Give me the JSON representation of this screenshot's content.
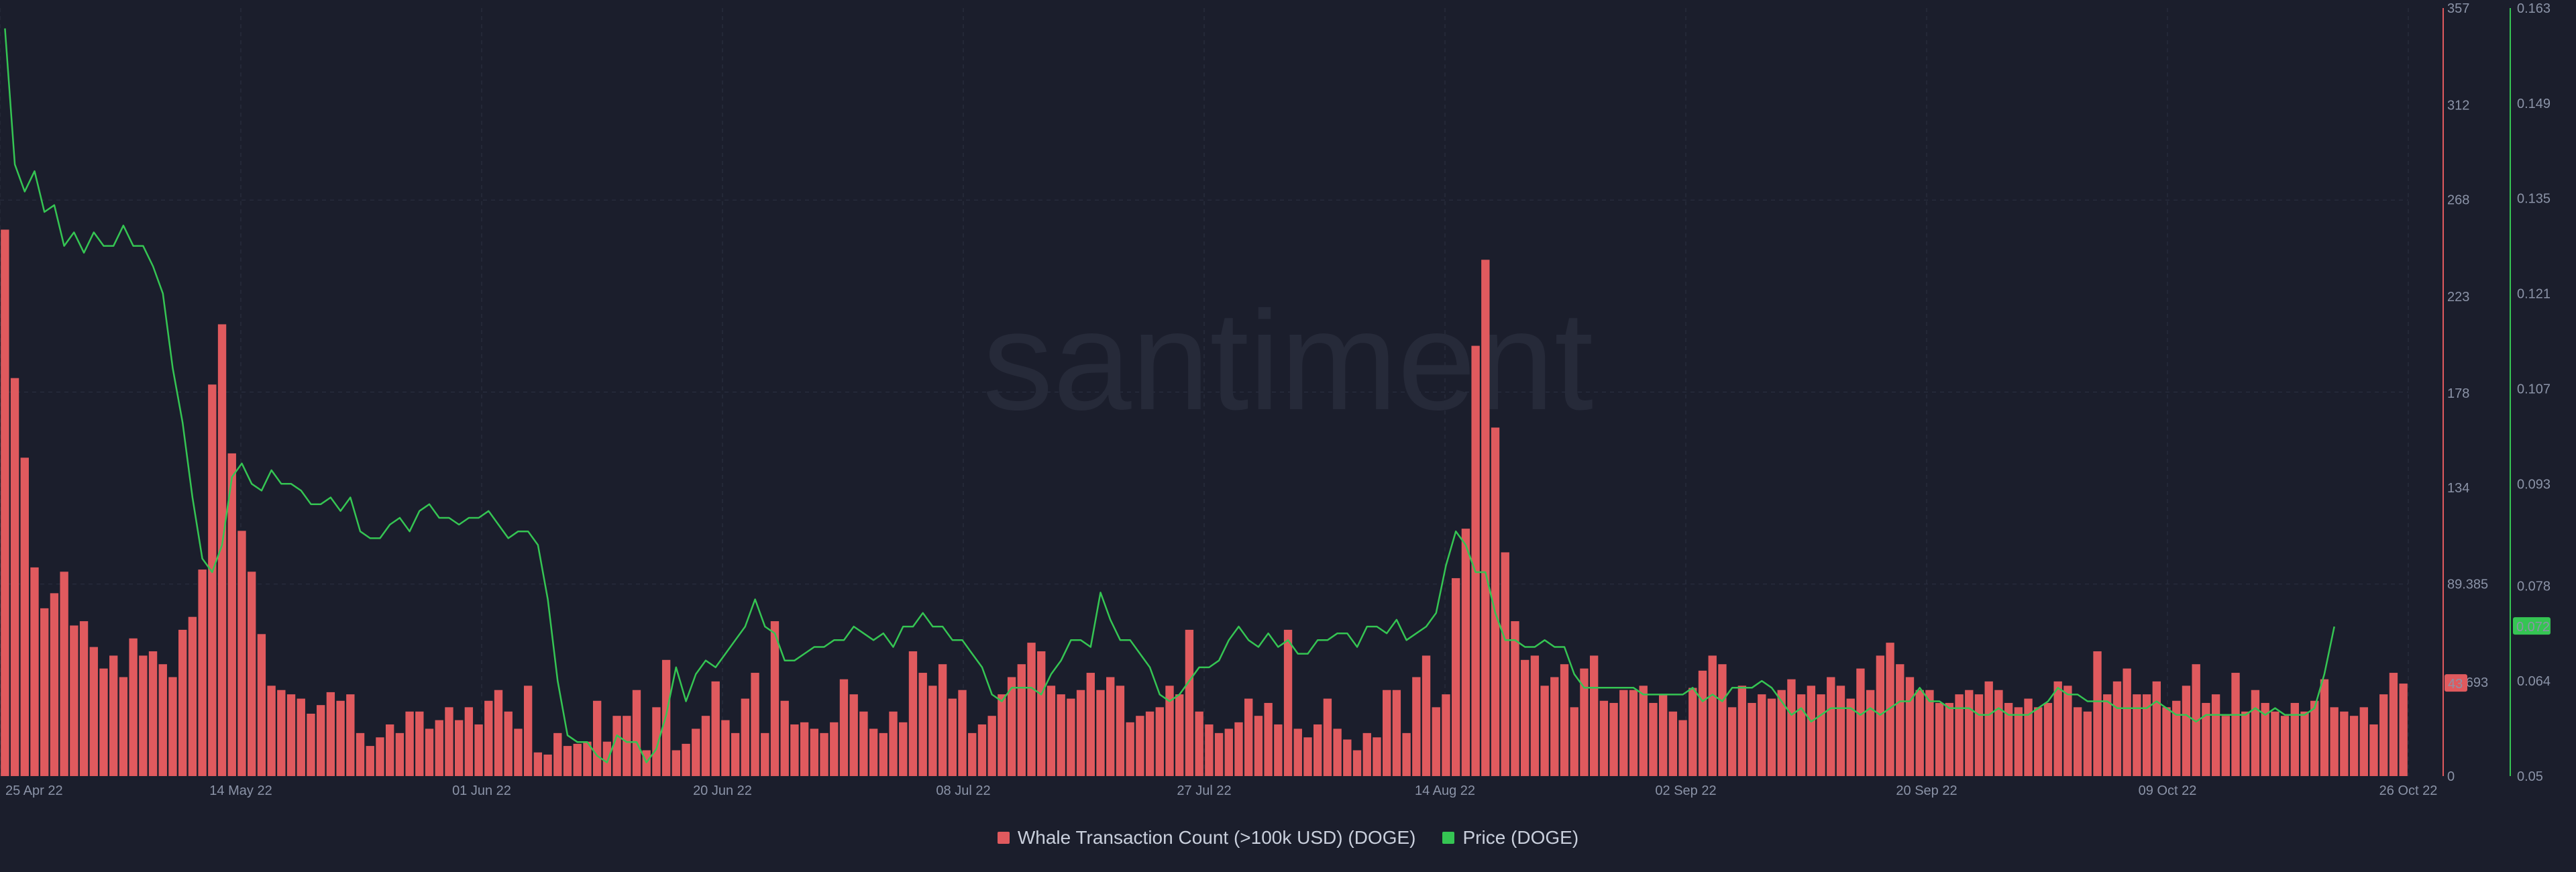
{
  "watermark": "santiment",
  "colors": {
    "background": "#1b1e2c",
    "whale": "#e05a5e",
    "price": "#35c553",
    "grid": "#2c3142",
    "axis_text": "#8b93a7"
  },
  "legend": {
    "whale_label": "Whale Transaction Count (>100k USD) (DOGE)",
    "price_label": "Price (DOGE)"
  },
  "current": {
    "whale_value": "43",
    "price_value": "0.072",
    "hidden_tick": "43.693"
  },
  "chart_data": {
    "type": "bar+line",
    "start_date": "2022-04-25",
    "end_date": "2022-10-26",
    "x_ticks": [
      "25 Apr 22",
      "14 May 22",
      "01 Jun 22",
      "20 Jun 22",
      "08 Jul 22",
      "27 Jul 22",
      "14 Aug 22",
      "02 Sep 22",
      "20 Sep 22",
      "09 Oct 22",
      "26 Oct 22"
    ],
    "left_axis": {
      "series": "Whale Transaction Count (>100k USD) (DOGE)",
      "ylim": [
        0,
        357
      ],
      "ticks": [
        "357",
        "312",
        "268",
        "223",
        "178",
        "134",
        "89.385",
        "0"
      ]
    },
    "right_axis": {
      "series": "Price (DOGE)",
      "ylim": [
        0.05,
        0.163
      ],
      "ticks": [
        "0.163",
        "0.149",
        "0.135",
        "0.121",
        "0.107",
        "0.093",
        "0.078",
        "0.064",
        "0.05"
      ]
    },
    "series": [
      {
        "name": "Whale Transaction Count (>100k USD) (DOGE)",
        "type": "bar",
        "axis": "left",
        "values": [
          254,
          185,
          148,
          97,
          78,
          85,
          95,
          70,
          72,
          60,
          50,
          56,
          46,
          64,
          56,
          58,
          52,
          46,
          68,
          74,
          96,
          182,
          210,
          150,
          114,
          95,
          66,
          42,
          40,
          38,
          36,
          29,
          33,
          39,
          35,
          38,
          20,
          14,
          18,
          24,
          20,
          30,
          30,
          22,
          26,
          32,
          26,
          32,
          24,
          35,
          40,
          30,
          22,
          42,
          11,
          10,
          20,
          14,
          15,
          16,
          35,
          16,
          28,
          28,
          40,
          12,
          32,
          54,
          12,
          15,
          22,
          28,
          44,
          26,
          20,
          36,
          48,
          20,
          72,
          35,
          24,
          25,
          22,
          20,
          25,
          45,
          38,
          30,
          22,
          20,
          30,
          25,
          58,
          48,
          42,
          52,
          36,
          40,
          20,
          24,
          28,
          38,
          46,
          52,
          62,
          58,
          42,
          38,
          36,
          40,
          48,
          40,
          46,
          42,
          25,
          28,
          30,
          32,
          42,
          38,
          68,
          30,
          24,
          20,
          22,
          25,
          36,
          28,
          34,
          24,
          68,
          22,
          18,
          24,
          36,
          22,
          17,
          12,
          20,
          18,
          40,
          40,
          20,
          46,
          56,
          32,
          38,
          92,
          115,
          200,
          240,
          162,
          104,
          72,
          54,
          56,
          42,
          46,
          52,
          32,
          50,
          56,
          35,
          34,
          40,
          40,
          42,
          34,
          38,
          30,
          26,
          41,
          49,
          56,
          52,
          32,
          42,
          34,
          38,
          36,
          40,
          45,
          38,
          42,
          38,
          46,
          42,
          36,
          50,
          40,
          56,
          62,
          52,
          46,
          40,
          40,
          34,
          34,
          38,
          40,
          38,
          44,
          40,
          34,
          32,
          36,
          32,
          34,
          44,
          42,
          32,
          30,
          58,
          38,
          44,
          50,
          38,
          38,
          44,
          32,
          35,
          42,
          52,
          34,
          38,
          28,
          48,
          30,
          40,
          34,
          30,
          28,
          34,
          30,
          35,
          45,
          32,
          30,
          28,
          32,
          24,
          38,
          48,
          43
        ]
      },
      {
        "name": "Price (DOGE)",
        "type": "line",
        "axis": "right",
        "values": [
          0.16,
          0.14,
          0.136,
          0.139,
          0.133,
          0.134,
          0.128,
          0.13,
          0.127,
          0.13,
          0.128,
          0.128,
          0.131,
          0.128,
          0.128,
          0.125,
          0.121,
          0.11,
          0.102,
          0.091,
          0.082,
          0.08,
          0.084,
          0.094,
          0.096,
          0.093,
          0.092,
          0.095,
          0.093,
          0.093,
          0.092,
          0.09,
          0.09,
          0.091,
          0.089,
          0.091,
          0.086,
          0.085,
          0.085,
          0.087,
          0.088,
          0.086,
          0.089,
          0.09,
          0.088,
          0.088,
          0.087,
          0.088,
          0.088,
          0.089,
          0.087,
          0.085,
          0.086,
          0.086,
          0.084,
          0.076,
          0.064,
          0.056,
          0.055,
          0.055,
          0.053,
          0.052,
          0.056,
          0.055,
          0.055,
          0.052,
          0.054,
          0.059,
          0.066,
          0.061,
          0.065,
          0.067,
          0.066,
          0.068,
          0.07,
          0.072,
          0.076,
          0.072,
          0.071,
          0.067,
          0.067,
          0.068,
          0.069,
          0.069,
          0.07,
          0.07,
          0.072,
          0.071,
          0.07,
          0.071,
          0.069,
          0.072,
          0.072,
          0.074,
          0.072,
          0.072,
          0.07,
          0.07,
          0.068,
          0.066,
          0.062,
          0.061,
          0.063,
          0.063,
          0.063,
          0.062,
          0.065,
          0.067,
          0.07,
          0.07,
          0.069,
          0.077,
          0.073,
          0.07,
          0.07,
          0.068,
          0.066,
          0.062,
          0.061,
          0.062,
          0.064,
          0.066,
          0.066,
          0.067,
          0.07,
          0.072,
          0.07,
          0.069,
          0.071,
          0.069,
          0.07,
          0.068,
          0.068,
          0.07,
          0.07,
          0.071,
          0.071,
          0.069,
          0.072,
          0.072,
          0.071,
          0.073,
          0.07,
          0.071,
          0.072,
          0.074,
          0.081,
          0.086,
          0.084,
          0.08,
          0.08,
          0.074,
          0.07,
          0.07,
          0.069,
          0.069,
          0.07,
          0.069,
          0.069,
          0.065,
          0.063,
          0.063,
          0.063,
          0.063,
          0.063,
          0.063,
          0.062,
          0.062,
          0.062,
          0.062,
          0.062,
          0.063,
          0.061,
          0.062,
          0.061,
          0.063,
          0.063,
          0.063,
          0.064,
          0.063,
          0.061,
          0.059,
          0.06,
          0.058,
          0.059,
          0.06,
          0.06,
          0.06,
          0.059,
          0.06,
          0.059,
          0.06,
          0.061,
          0.061,
          0.063,
          0.061,
          0.061,
          0.06,
          0.06,
          0.06,
          0.059,
          0.059,
          0.06,
          0.059,
          0.059,
          0.059,
          0.06,
          0.061,
          0.063,
          0.062,
          0.062,
          0.061,
          0.061,
          0.061,
          0.06,
          0.06,
          0.06,
          0.06,
          0.061,
          0.06,
          0.059,
          0.059,
          0.058,
          0.059,
          0.059,
          0.059,
          0.059,
          0.059,
          0.06,
          0.059,
          0.06,
          0.059,
          0.059,
          0.059,
          0.06,
          0.065,
          0.072
        ]
      }
    ],
    "grid": true,
    "legend_position": "bottom-center"
  }
}
